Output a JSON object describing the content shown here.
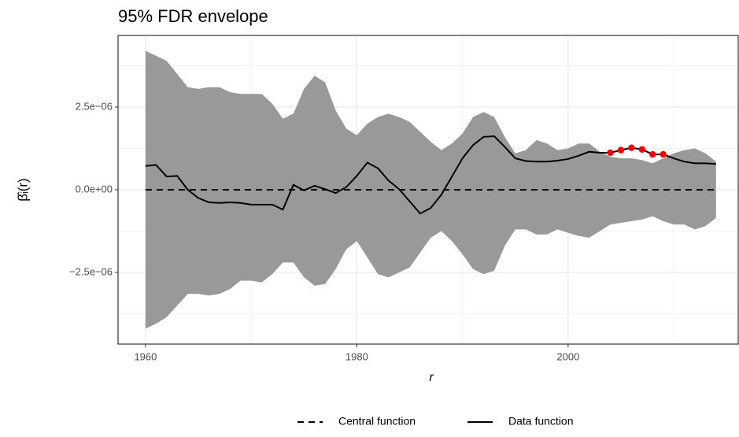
{
  "chart_data": {
    "type": "line",
    "title": "95% FDR envelope",
    "xlabel": "r",
    "ylabel": "β̂ᵢ(r)",
    "x": [
      1960,
      1961,
      1962,
      1963,
      1964,
      1965,
      1966,
      1967,
      1968,
      1969,
      1970,
      1971,
      1972,
      1973,
      1974,
      1975,
      1976,
      1977,
      1978,
      1979,
      1980,
      1981,
      1982,
      1983,
      1984,
      1985,
      1986,
      1987,
      1988,
      1989,
      1990,
      1991,
      1992,
      1993,
      1994,
      1995,
      1996,
      1997,
      1998,
      1999,
      2000,
      2001,
      2002,
      2003,
      2004,
      2005,
      2006,
      2007,
      2008,
      2009,
      2010,
      2011,
      2012,
      2013,
      2014
    ],
    "envelope": {
      "color": "#999999",
      "upper": [
        4.2e-06,
        4.05e-06,
        3.9e-06,
        3.5e-06,
        3.1e-06,
        3.05e-06,
        3.1e-06,
        3.1e-06,
        2.95e-06,
        2.9e-06,
        2.9e-06,
        2.9e-06,
        2.6e-06,
        2.15e-06,
        2.3e-06,
        3.05e-06,
        3.45e-06,
        3.25e-06,
        2.4e-06,
        1.85e-06,
        1.65e-06,
        2e-06,
        2.2e-06,
        2.3e-06,
        2.2e-06,
        2.05e-06,
        1.75e-06,
        1.45e-06,
        1.2e-06,
        1.4e-06,
        1.7e-06,
        2.2e-06,
        2.35e-06,
        2.2e-06,
        1.6e-06,
        1.1e-06,
        1.2e-06,
        1.5e-06,
        1.4e-06,
        1.2e-06,
        1.25e-06,
        1.4e-06,
        1.4e-06,
        1.15e-06,
        1e-06,
        9.5e-07,
        9.5e-07,
        9e-07,
        8e-07,
        9.5e-07,
        1.1e-06,
        1.2e-06,
        1.25e-06,
        1.1e-06,
        8.5e-07
      ],
      "lower": [
        -4.2e-06,
        -4.05e-06,
        -3.85e-06,
        -3.5e-06,
        -3.15e-06,
        -3.15e-06,
        -3.2e-06,
        -3.15e-06,
        -3e-06,
        -2.75e-06,
        -2.75e-06,
        -2.8e-06,
        -2.55e-06,
        -2.2e-06,
        -2.2e-06,
        -2.65e-06,
        -2.9e-06,
        -2.85e-06,
        -2.4e-06,
        -1.8e-06,
        -1.55e-06,
        -2.05e-06,
        -2.55e-06,
        -2.65e-06,
        -2.5e-06,
        -2.35e-06,
        -1.9e-06,
        -1.45e-06,
        -1.25e-06,
        -1.55e-06,
        -1.95e-06,
        -2.4e-06,
        -2.55e-06,
        -2.45e-06,
        -1.7e-06,
        -1.2e-06,
        -1.2e-06,
        -1.35e-06,
        -1.35e-06,
        -1.2e-06,
        -1.3e-06,
        -1.4e-06,
        -1.45e-06,
        -1.25e-06,
        -1.05e-06,
        -1e-06,
        -9.5e-07,
        -9e-07,
        -8e-07,
        -9.5e-07,
        -1.05e-06,
        -1.05e-06,
        -1.2e-06,
        -1.1e-06,
        -8.5e-07
      ]
    },
    "series": [
      {
        "name": "Central function",
        "color": "#000000",
        "dashed": true,
        "values": [
          0,
          0,
          0,
          0,
          0,
          0,
          0,
          0,
          0,
          0,
          0,
          0,
          0,
          0,
          0,
          0,
          0,
          0,
          0,
          0,
          0,
          0,
          0,
          0,
          0,
          0,
          0,
          0,
          0,
          0,
          0,
          0,
          0,
          0,
          0,
          0,
          0,
          0,
          0,
          0,
          0,
          0,
          0,
          0,
          0,
          0,
          0,
          0,
          0,
          0,
          0,
          0,
          0,
          0,
          0
        ]
      },
      {
        "name": "Data function",
        "color": "#000000",
        "dashed": false,
        "values": [
          7.2e-07,
          7.5e-07,
          4e-07,
          4.2e-07,
          0.0,
          -2.5e-07,
          -3.8e-07,
          -4e-07,
          -3.8e-07,
          -4e-07,
          -4.5e-07,
          -4.5e-07,
          -4.5e-07,
          -6e-07,
          1.5e-07,
          -2e-08,
          1.2e-07,
          2e-08,
          -1e-07,
          8e-08,
          4.2e-07,
          8.2e-07,
          6.5e-07,
          2.8e-07,
          2e-08,
          -3.5e-07,
          -7.2e-07,
          -5.5e-07,
          -1.5e-07,
          4e-07,
          9.5e-07,
          1.35e-06,
          1.6e-06,
          1.62e-06,
          1.3e-06,
          9.5e-07,
          8.7e-07,
          8.5e-07,
          8.5e-07,
          8.8e-07,
          9.3e-07,
          1.03e-06,
          1.15e-06,
          1.12e-06,
          1.12e-06,
          1.2e-06,
          1.27e-06,
          1.22e-06,
          1.07e-06,
          1.07e-06,
          9.5e-07,
          8.5e-07,
          8e-07,
          8e-07,
          7.8e-07
        ]
      }
    ],
    "points": {
      "color": "#ff0000",
      "x": [
        2004,
        2005,
        2006,
        2007,
        2008,
        2009
      ],
      "values": [
        1.12e-06,
        1.2e-06,
        1.27e-06,
        1.22e-06,
        1.07e-06,
        1.07e-06
      ]
    },
    "xlim": [
      1957.4,
      2016.1
    ],
    "ylim": [
      -4.667e-06,
      4.667e-06
    ],
    "xticks": [
      1960,
      1980,
      2000
    ],
    "xminor": [
      1970,
      1990,
      2010
    ],
    "yticks": [
      {
        "value": -2.5e-06,
        "label": "−2.5e−06"
      },
      {
        "value": 0,
        "label": "0.0e+00"
      },
      {
        "value": 2.5e-06,
        "label": "2.5e−06"
      }
    ],
    "yminor": [
      -3.75e-06,
      -1.25e-06,
      1.25e-06,
      3.75e-06
    ],
    "grid": true,
    "legend": "bottom"
  }
}
